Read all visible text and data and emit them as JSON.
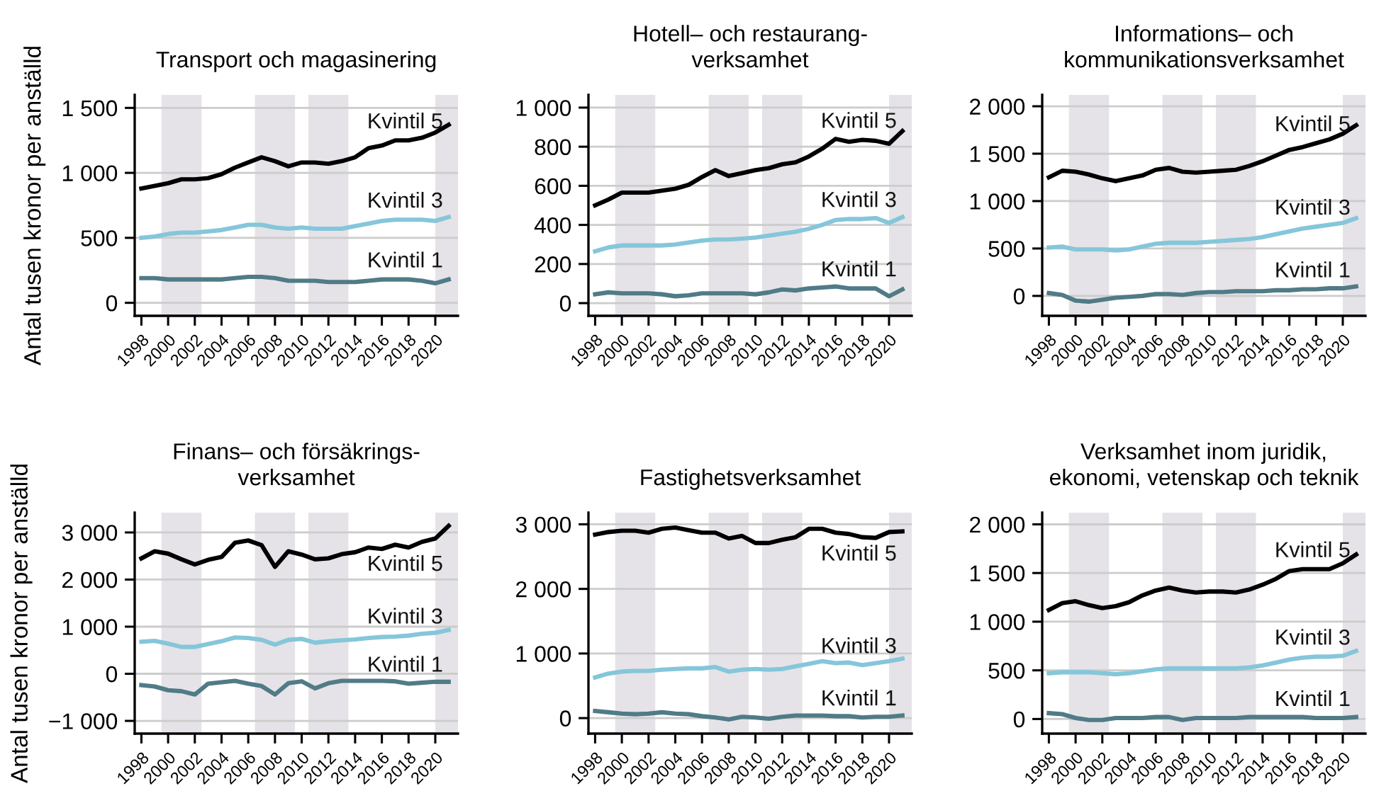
{
  "chart_data": [
    {
      "type": "line",
      "title": "Transport och magasinering",
      "ylabel": "Antal tusen kronor per anställd",
      "x": [
        1998,
        1999,
        2000,
        2001,
        2002,
        2003,
        2004,
        2005,
        2006,
        2007,
        2008,
        2009,
        2010,
        2011,
        2012,
        2013,
        2014,
        2015,
        2016,
        2017,
        2018,
        2019,
        2020,
        2021
      ],
      "xlim": [
        1997.5,
        2021.7
      ],
      "xticks": [
        1998,
        2000,
        2002,
        2004,
        2006,
        2008,
        2010,
        2012,
        2014,
        2016,
        2018,
        2020
      ],
      "ylim": [
        -100,
        1600
      ],
      "yticks": [
        0,
        500,
        {
          "value": 1000,
          "label": "1 000"
        },
        {
          "value": 1500,
          "label": "1 500"
        }
      ],
      "grid": "y",
      "legend": false,
      "bands": [
        {
          "axis": "x",
          "from": 1999.5,
          "to": 2002.5,
          "color": "#e5e3e7"
        },
        {
          "axis": "x",
          "from": 2006.5,
          "to": 2009.5,
          "color": "#e5e3e7"
        },
        {
          "axis": "x",
          "from": 2010.5,
          "to": 2013.5,
          "color": "#e5e3e7"
        },
        {
          "axis": "x",
          "from": 2020,
          "to": 2021.7,
          "color": "#e5e3e7"
        }
      ],
      "series": [
        {
          "name": "Kvintil 5",
          "color": "#000000",
          "values": [
            880,
            900,
            920,
            950,
            950,
            960,
            990,
            1040,
            1080,
            1120,
            1090,
            1050,
            1080,
            1080,
            1070,
            1090,
            1120,
            1190,
            1210,
            1250,
            1250,
            1270,
            1310,
            1370
          ]
        },
        {
          "name": "Kvintil 3",
          "color": "#85c6da",
          "values": [
            500,
            510,
            530,
            540,
            540,
            550,
            560,
            580,
            600,
            600,
            580,
            570,
            580,
            570,
            570,
            570,
            590,
            610,
            630,
            640,
            640,
            640,
            630,
            660
          ]
        },
        {
          "name": "Kvintil 1",
          "color": "#507b87",
          "values": [
            190,
            190,
            180,
            180,
            180,
            180,
            180,
            190,
            200,
            200,
            190,
            170,
            170,
            170,
            160,
            160,
            160,
            170,
            180,
            180,
            180,
            170,
            150,
            180
          ]
        }
      ]
    },
    {
      "type": "line",
      "title": "Hotell– och restaurang-\nverksamhet",
      "x": [
        1998,
        1999,
        2000,
        2001,
        2002,
        2003,
        2004,
        2005,
        2006,
        2007,
        2008,
        2009,
        2010,
        2011,
        2012,
        2013,
        2014,
        2015,
        2016,
        2017,
        2018,
        2019,
        2020,
        2021
      ],
      "xlim": [
        1997.5,
        2021.7
      ],
      "xticks": [
        1998,
        2000,
        2002,
        2004,
        2006,
        2008,
        2010,
        2012,
        2014,
        2016,
        2018,
        2020
      ],
      "ylim": [
        -65,
        1065
      ],
      "yticks": [
        0,
        200,
        400,
        600,
        800,
        {
          "value": 1000,
          "label": "1 000"
        }
      ],
      "grid": "y",
      "legend": false,
      "bands": [
        {
          "axis": "x",
          "from": 1999.5,
          "to": 2002.5,
          "color": "#e5e3e7"
        },
        {
          "axis": "x",
          "from": 2006.5,
          "to": 2009.5,
          "color": "#e5e3e7"
        },
        {
          "axis": "x",
          "from": 2010.5,
          "to": 2013.5,
          "color": "#e5e3e7"
        },
        {
          "axis": "x",
          "from": 2020,
          "to": 2021.7,
          "color": "#e5e3e7"
        }
      ],
      "series": [
        {
          "name": "Kvintil 5",
          "color": "#000000",
          "values": [
            500,
            530,
            565,
            565,
            565,
            575,
            585,
            605,
            645,
            680,
            650,
            665,
            680,
            690,
            710,
            720,
            750,
            790,
            840,
            825,
            835,
            830,
            815,
            880
          ]
        },
        {
          "name": "Kvintil 3",
          "color": "#85c6da",
          "values": [
            265,
            285,
            295,
            295,
            295,
            295,
            300,
            310,
            320,
            325,
            325,
            330,
            335,
            345,
            355,
            365,
            380,
            400,
            425,
            430,
            430,
            435,
            410,
            440
          ]
        },
        {
          "name": "Kvintil 1",
          "color": "#507b87",
          "values": [
            45,
            55,
            50,
            50,
            50,
            45,
            35,
            40,
            50,
            50,
            50,
            50,
            45,
            55,
            70,
            65,
            75,
            80,
            85,
            75,
            75,
            75,
            35,
            70
          ]
        }
      ]
    },
    {
      "type": "line",
      "title": "Informations– och\nkommunikationsverksamhet",
      "x": [
        1998,
        1999,
        2000,
        2001,
        2002,
        2003,
        2004,
        2005,
        2006,
        2007,
        2008,
        2009,
        2010,
        2011,
        2012,
        2013,
        2014,
        2015,
        2016,
        2017,
        2018,
        2019,
        2020,
        2021
      ],
      "xlim": [
        1997.5,
        2021.7
      ],
      "xticks": [
        1998,
        2000,
        2002,
        2004,
        2006,
        2008,
        2010,
        2012,
        2014,
        2016,
        2018,
        2020
      ],
      "ylim": [
        -210,
        2120
      ],
      "yticks": [
        0,
        500,
        {
          "value": 1000,
          "label": "1 000"
        },
        {
          "value": 1500,
          "label": "1 500"
        },
        {
          "value": 2000,
          "label": "2 000"
        }
      ],
      "grid": "y",
      "legend": false,
      "bands": [
        {
          "axis": "x",
          "from": 1999.5,
          "to": 2002.5,
          "color": "#e5e3e7"
        },
        {
          "axis": "x",
          "from": 2006.5,
          "to": 2009.5,
          "color": "#e5e3e7"
        },
        {
          "axis": "x",
          "from": 2010.5,
          "to": 2013.5,
          "color": "#e5e3e7"
        },
        {
          "axis": "x",
          "from": 2020,
          "to": 2021.7,
          "color": "#e5e3e7"
        }
      ],
      "series": [
        {
          "name": "Kvintil 5",
          "color": "#000000",
          "values": [
            1250,
            1320,
            1310,
            1280,
            1240,
            1210,
            1240,
            1270,
            1330,
            1350,
            1310,
            1300,
            1310,
            1320,
            1330,
            1370,
            1420,
            1480,
            1540,
            1570,
            1610,
            1650,
            1710,
            1800
          ]
        },
        {
          "name": "Kvintil 3",
          "color": "#85c6da",
          "values": [
            510,
            520,
            490,
            490,
            490,
            480,
            490,
            520,
            550,
            560,
            560,
            560,
            570,
            580,
            590,
            600,
            620,
            650,
            680,
            710,
            730,
            750,
            770,
            820
          ]
        },
        {
          "name": "Kvintil 1",
          "color": "#507b87",
          "values": [
            30,
            10,
            -50,
            -60,
            -40,
            -20,
            -10,
            0,
            20,
            20,
            10,
            30,
            40,
            40,
            50,
            50,
            50,
            60,
            60,
            70,
            70,
            80,
            80,
            100
          ]
        }
      ]
    },
    {
      "type": "line",
      "title": "Finans– och försäkrings-\nverksamhet",
      "ylabel": "Antal tusen kronor per anställd",
      "x": [
        1998,
        1999,
        2000,
        2001,
        2002,
        2003,
        2004,
        2005,
        2006,
        2007,
        2008,
        2009,
        2010,
        2011,
        2012,
        2013,
        2014,
        2015,
        2016,
        2017,
        2018,
        2019,
        2020,
        2021
      ],
      "xlim": [
        1997.5,
        2021.7
      ],
      "xticks": [
        1998,
        2000,
        2002,
        2004,
        2006,
        2008,
        2010,
        2012,
        2014,
        2016,
        2018,
        2020
      ],
      "ylim": [
        -1270,
        3420
      ],
      "yticks": [
        {
          "value": -1000,
          "label": "−1 000"
        },
        0,
        {
          "value": 1000,
          "label": "1 000"
        },
        {
          "value": 2000,
          "label": "2 000"
        },
        {
          "value": 3000,
          "label": "3 000"
        }
      ],
      "grid": "y",
      "legend": false,
      "bands": [
        {
          "axis": "x",
          "from": 1999.5,
          "to": 2002.5,
          "color": "#e5e3e7"
        },
        {
          "axis": "x",
          "from": 2006.5,
          "to": 2009.5,
          "color": "#e5e3e7"
        },
        {
          "axis": "x",
          "from": 2010.5,
          "to": 2013.5,
          "color": "#e5e3e7"
        },
        {
          "axis": "x",
          "from": 2020,
          "to": 2021.7,
          "color": "#e5e3e7"
        }
      ],
      "series": [
        {
          "name": "Kvintil 5",
          "color": "#000000",
          "values": [
            2450,
            2600,
            2550,
            2430,
            2320,
            2420,
            2480,
            2780,
            2830,
            2730,
            2270,
            2600,
            2530,
            2430,
            2450,
            2540,
            2580,
            2680,
            2650,
            2740,
            2680,
            2800,
            2870,
            3140
          ]
        },
        {
          "name": "Kvintil 3",
          "color": "#85c6da",
          "values": [
            680,
            700,
            640,
            570,
            570,
            630,
            690,
            770,
            760,
            720,
            620,
            720,
            740,
            660,
            690,
            710,
            730,
            760,
            780,
            790,
            810,
            850,
            870,
            930
          ]
        },
        {
          "name": "Kvintil 1",
          "color": "#507b87",
          "values": [
            -240,
            -270,
            -350,
            -370,
            -440,
            -210,
            -180,
            -150,
            -210,
            -260,
            -440,
            -200,
            -160,
            -310,
            -200,
            -150,
            -150,
            -150,
            -150,
            -160,
            -210,
            -190,
            -170,
            -170
          ]
        }
      ]
    },
    {
      "type": "line",
      "title": "Fastighetsverksamhet",
      "x": [
        1998,
        1999,
        2000,
        2001,
        2002,
        2003,
        2004,
        2005,
        2006,
        2007,
        2008,
        2009,
        2010,
        2011,
        2012,
        2013,
        2014,
        2015,
        2016,
        2017,
        2018,
        2019,
        2020,
        2021
      ],
      "xlim": [
        1997.5,
        2021.7
      ],
      "xticks": [
        1998,
        2000,
        2002,
        2004,
        2006,
        2008,
        2010,
        2012,
        2014,
        2016,
        2018,
        2020
      ],
      "ylim": [
        -240,
        3180
      ],
      "yticks": [
        0,
        {
          "value": 1000,
          "label": "1 000"
        },
        {
          "value": 2000,
          "label": "2 000"
        },
        {
          "value": 3000,
          "label": "3 000"
        }
      ],
      "grid": "y",
      "legend": false,
      "bands": [
        {
          "axis": "x",
          "from": 1999.5,
          "to": 2002.5,
          "color": "#e5e3e7"
        },
        {
          "axis": "x",
          "from": 2006.5,
          "to": 2009.5,
          "color": "#e5e3e7"
        },
        {
          "axis": "x",
          "from": 2010.5,
          "to": 2013.5,
          "color": "#e5e3e7"
        },
        {
          "axis": "x",
          "from": 2020,
          "to": 2021.7,
          "color": "#e5e3e7"
        }
      ],
      "series": [
        {
          "name": "Kvintil 5",
          "color": "#000000",
          "values": [
            2840,
            2880,
            2900,
            2900,
            2870,
            2930,
            2950,
            2910,
            2870,
            2870,
            2780,
            2820,
            2710,
            2710,
            2760,
            2800,
            2930,
            2930,
            2870,
            2850,
            2800,
            2790,
            2880,
            2890
          ]
        },
        {
          "name": "Kvintil 3",
          "color": "#85c6da",
          "values": [
            630,
            690,
            720,
            730,
            730,
            750,
            760,
            770,
            770,
            790,
            720,
            750,
            760,
            750,
            760,
            800,
            840,
            880,
            850,
            860,
            820,
            850,
            880,
            920
          ]
        },
        {
          "name": "Kvintil 1",
          "color": "#507b87",
          "values": [
            110,
            90,
            70,
            60,
            70,
            90,
            70,
            60,
            30,
            10,
            -20,
            20,
            10,
            -10,
            20,
            40,
            40,
            40,
            30,
            30,
            10,
            20,
            20,
            40
          ]
        }
      ]
    },
    {
      "type": "line",
      "title": "Verksamhet inom juridik,\nekonomi, vetenskap och teknik",
      "x": [
        1998,
        1999,
        2000,
        2001,
        2002,
        2003,
        2004,
        2005,
        2006,
        2007,
        2008,
        2009,
        2010,
        2011,
        2012,
        2013,
        2014,
        2015,
        2016,
        2017,
        2018,
        2019,
        2020,
        2021
      ],
      "xlim": [
        1997.5,
        2021.7
      ],
      "xticks": [
        1998,
        2000,
        2002,
        2004,
        2006,
        2008,
        2010,
        2012,
        2014,
        2016,
        2018,
        2020
      ],
      "ylim": [
        -150,
        2120
      ],
      "yticks": [
        0,
        500,
        {
          "value": 1000,
          "label": "1 000"
        },
        {
          "value": 1500,
          "label": "1 500"
        },
        {
          "value": 2000,
          "label": "2 000"
        }
      ],
      "grid": "y",
      "legend": false,
      "bands": [
        {
          "axis": "x",
          "from": 1999.5,
          "to": 2002.5,
          "color": "#e5e3e7"
        },
        {
          "axis": "x",
          "from": 2006.5,
          "to": 2009.5,
          "color": "#e5e3e7"
        },
        {
          "axis": "x",
          "from": 2010.5,
          "to": 2013.5,
          "color": "#e5e3e7"
        },
        {
          "axis": "x",
          "from": 2020,
          "to": 2021.7,
          "color": "#e5e3e7"
        }
      ],
      "series": [
        {
          "name": "Kvintil 5",
          "color": "#000000",
          "values": [
            1120,
            1190,
            1210,
            1170,
            1140,
            1160,
            1200,
            1270,
            1320,
            1350,
            1320,
            1300,
            1310,
            1310,
            1300,
            1330,
            1380,
            1440,
            1520,
            1540,
            1540,
            1540,
            1600,
            1690
          ]
        },
        {
          "name": "Kvintil 3",
          "color": "#85c6da",
          "values": [
            470,
            480,
            480,
            480,
            470,
            460,
            470,
            490,
            510,
            520,
            520,
            520,
            520,
            520,
            520,
            530,
            550,
            580,
            610,
            630,
            640,
            640,
            650,
            700
          ]
        },
        {
          "name": "Kvintil 1",
          "color": "#507b87",
          "values": [
            60,
            50,
            10,
            -10,
            -10,
            10,
            10,
            10,
            20,
            20,
            -10,
            10,
            10,
            10,
            10,
            20,
            20,
            20,
            20,
            20,
            10,
            10,
            10,
            20
          ]
        }
      ]
    }
  ]
}
